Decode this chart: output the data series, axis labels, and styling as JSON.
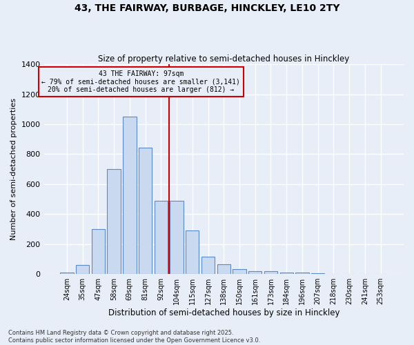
{
  "title1": "43, THE FAIRWAY, BURBAGE, HINCKLEY, LE10 2TY",
  "title2": "Size of property relative to semi-detached houses in Hinckley",
  "xlabel": "Distribution of semi-detached houses by size in Hinckley",
  "ylabel": "Number of semi-detached properties",
  "annotation_line1": "43 THE FAIRWAY: 97sqm",
  "annotation_line2": "← 79% of semi-detached houses are smaller (3,141)",
  "annotation_line3": "20% of semi-detached houses are larger (812) →",
  "categories": [
    "24sqm",
    "35sqm",
    "47sqm",
    "58sqm",
    "69sqm",
    "81sqm",
    "92sqm",
    "104sqm",
    "115sqm",
    "127sqm",
    "138sqm",
    "150sqm",
    "161sqm",
    "173sqm",
    "184sqm",
    "196sqm",
    "207sqm",
    "218sqm",
    "230sqm",
    "241sqm",
    "253sqm"
  ],
  "values": [
    10,
    60,
    300,
    700,
    1050,
    845,
    490,
    490,
    290,
    115,
    65,
    35,
    20,
    18,
    12,
    10,
    5,
    3,
    0,
    0,
    0
  ],
  "bar_color": "#c9d9f0",
  "bar_edge_color": "#5b8ac9",
  "vline_x": 6.5,
  "vline_color": "#cc0000",
  "ylim": [
    0,
    1400
  ],
  "yticks": [
    0,
    200,
    400,
    600,
    800,
    1000,
    1200,
    1400
  ],
  "bg_color": "#e8eef8",
  "grid_color": "#ffffff",
  "annotation_box_color": "#cc0000",
  "footer": "Contains HM Land Registry data © Crown copyright and database right 2025.\nContains public sector information licensed under the Open Government Licence v3.0."
}
